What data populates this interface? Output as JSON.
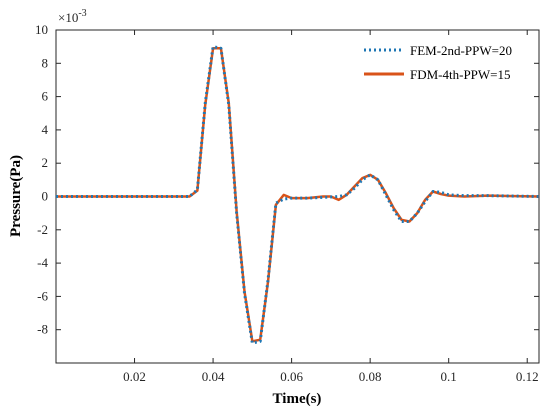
{
  "chart_data": {
    "type": "line",
    "xlabel": "Time(s)",
    "ylabel": "Pressure(Pa)",
    "y_exponent_base": "×10",
    "y_exponent_power": "-3",
    "xlim": [
      0,
      0.123
    ],
    "ylim": [
      -10,
      10
    ],
    "xticks": [
      0.02,
      0.04,
      0.06,
      0.08,
      0.1,
      0.12
    ],
    "xtick_labels": [
      "0.02",
      "0.04",
      "0.06",
      "0.08",
      "0.1",
      "0.12"
    ],
    "yticks": [
      -8,
      -6,
      -4,
      -2,
      0,
      2,
      4,
      6,
      8,
      10
    ],
    "ytick_labels": [
      "-8",
      "-6",
      "-4",
      "-2",
      "0",
      "2",
      "4",
      "6",
      "8",
      "10"
    ],
    "grid": false,
    "legend_position": "top-right",
    "series": [
      {
        "name": "FEM-2nd-PPW=20",
        "color": "#1f77b4",
        "style": "dotted",
        "x": [
          0,
          0.034,
          0.036,
          0.038,
          0.04,
          0.042,
          0.044,
          0.046,
          0.048,
          0.05,
          0.052,
          0.054,
          0.056,
          0.058,
          0.06,
          0.064,
          0.068,
          0.072,
          0.074,
          0.076,
          0.078,
          0.08,
          0.082,
          0.084,
          0.086,
          0.088,
          0.09,
          0.092,
          0.094,
          0.096,
          0.098,
          0.1,
          0.104,
          0.11,
          0.123
        ],
        "y": [
          0,
          0,
          0.4,
          5.6,
          9.0,
          8.9,
          5.5,
          -1.0,
          -5.8,
          -8.8,
          -8.7,
          -5.0,
          -0.4,
          -0.15,
          -0.1,
          -0.1,
          -0.05,
          0,
          0.1,
          0.5,
          1.0,
          1.3,
          1.0,
          0.1,
          -0.8,
          -1.5,
          -1.5,
          -1.0,
          -0.3,
          0.3,
          0.25,
          0.1,
          0.05,
          0.05,
          0
        ]
      },
      {
        "name": "FDM-4th-PPW=15",
        "color": "#d95319",
        "style": "solid",
        "x": [
          0,
          0.034,
          0.036,
          0.038,
          0.04,
          0.042,
          0.044,
          0.046,
          0.048,
          0.05,
          0.052,
          0.054,
          0.056,
          0.058,
          0.06,
          0.064,
          0.068,
          0.07,
          0.072,
          0.074,
          0.076,
          0.078,
          0.08,
          0.082,
          0.084,
          0.086,
          0.088,
          0.09,
          0.092,
          0.094,
          0.096,
          0.098,
          0.1,
          0.104,
          0.11,
          0.123
        ],
        "y": [
          0,
          0,
          0.35,
          5.5,
          8.9,
          8.9,
          5.6,
          -0.9,
          -5.7,
          -8.7,
          -8.6,
          -5.1,
          -0.5,
          0.1,
          -0.1,
          -0.1,
          0,
          0,
          -0.2,
          0.1,
          0.6,
          1.1,
          1.3,
          1.0,
          0.2,
          -0.7,
          -1.4,
          -1.5,
          -1.0,
          -0.2,
          0.3,
          0.15,
          0.05,
          0,
          0.05,
          0
        ]
      }
    ]
  }
}
